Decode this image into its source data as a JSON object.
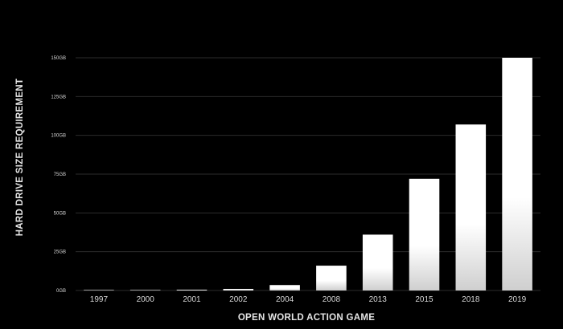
{
  "chart_data": {
    "type": "bar",
    "title": "",
    "xlabel": "OPEN WORLD ACTION GAME",
    "ylabel": "HARD DRIVE SIZE REQUIREMENT",
    "categories": [
      "1997",
      "2000",
      "2001",
      "2002",
      "2004",
      "2008",
      "2013",
      "2015",
      "2018",
      "2019"
    ],
    "values": [
      0.1,
      0.2,
      0.5,
      1,
      3.5,
      16,
      36,
      72,
      107,
      150
    ],
    "ylim": [
      0,
      150
    ],
    "yticks": [
      0,
      25,
      50,
      75,
      100,
      125,
      150
    ],
    "ytick_labels": [
      "0GB",
      "25GB",
      "50GB",
      "75GB",
      "100GB",
      "125GB",
      "150GB"
    ],
    "grid": true,
    "legend": "none",
    "colors": {
      "background": "#000000",
      "bar_top": "#ffffff",
      "bar_bottom": "#d0d0d0",
      "grid": "#2c2c2c",
      "text": "#d8d8d8"
    }
  }
}
